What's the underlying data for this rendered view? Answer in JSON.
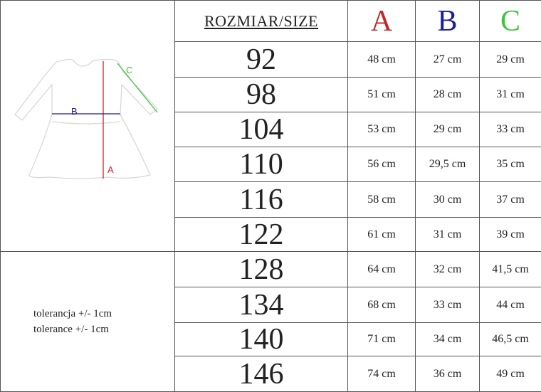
{
  "header": {
    "size_label": "ROZMIAR/SIZE",
    "columns": [
      "A",
      "B",
      "C"
    ]
  },
  "colors": {
    "A": "#c0282a",
    "B": "#1c1c9c",
    "C": "#3cc43c"
  },
  "diagram": {
    "labels": {
      "A": "A",
      "B": "B",
      "C": "C"
    }
  },
  "tolerance": [
    "tolerancja +/- 1cm",
    "tolerance +/- 1cm"
  ],
  "rows": [
    {
      "size": "92",
      "a": "48 cm",
      "b": "27 cm",
      "c": "29 cm"
    },
    {
      "size": "98",
      "a": "51 cm",
      "b": "28 cm",
      "c": "31 cm"
    },
    {
      "size": "104",
      "a": "53 cm",
      "b": "29 cm",
      "c": "33 cm"
    },
    {
      "size": "110",
      "a": "56 cm",
      "b": "29,5 cm",
      "c": "35 cm"
    },
    {
      "size": "116",
      "a": "58 cm",
      "b": "30 cm",
      "c": "37 cm"
    },
    {
      "size": "122",
      "a": "61 cm",
      "b": "31 cm",
      "c": "39 cm"
    },
    {
      "size": "128",
      "a": "64 cm",
      "b": "32 cm",
      "c": "41,5 cm"
    },
    {
      "size": "134",
      "a": "68 cm",
      "b": "33 cm",
      "c": "44 cm"
    },
    {
      "size": "140",
      "a": "71 cm",
      "b": "34 cm",
      "c": "46,5 cm"
    },
    {
      "size": "146",
      "a": "74 cm",
      "b": "36 cm",
      "c": "49 cm"
    }
  ]
}
